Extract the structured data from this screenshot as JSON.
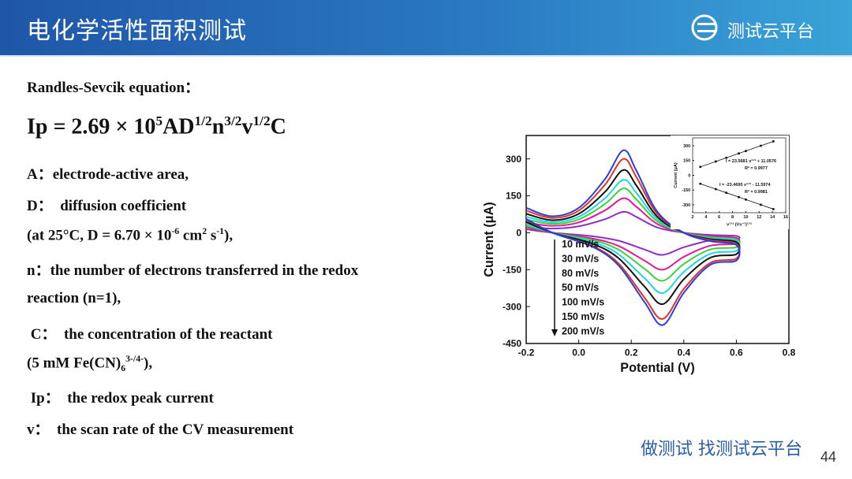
{
  "header": {
    "title": "电化学活性面积测试",
    "logo": "测试云平台"
  },
  "content": {
    "lines": [
      [
        {
          "t": "Randles-Sevcik equation："
        }
      ],
      [
        {
          "t": "Ip = 2.69 × 10"
        },
        {
          "t": "5",
          "s": "sup"
        },
        {
          "t": "AD"
        },
        {
          "t": "1/2",
          "s": "sup"
        },
        {
          "t": "n"
        },
        {
          "t": "3/2",
          "s": "sup"
        },
        {
          "t": "v"
        },
        {
          "t": "1/2",
          "s": "sup"
        },
        {
          "t": "C"
        }
      ],
      [
        {
          "t": "A：electrode-active area,"
        }
      ],
      [
        {
          "t": "D：  diffusion coefficient"
        }
      ],
      [
        {
          "t": "(at 25°C, D = 6.70 × 10"
        },
        {
          "t": "-6",
          "s": "sup"
        },
        {
          "t": " cm"
        },
        {
          "t": "2",
          "s": "sup"
        },
        {
          "t": " s"
        },
        {
          "t": "-1",
          "s": "sup"
        },
        {
          "t": "),"
        }
      ],
      [
        {
          "t": "n：the number of electrons transferred in the redox"
        }
      ],
      [
        {
          "t": "reaction (n=1),"
        }
      ],
      [
        {
          "t": " C：  the concentration of the reactant"
        }
      ],
      [
        {
          "t": "(5 mM Fe(CN)"
        },
        {
          "t": "6",
          "s": "sub"
        },
        {
          "t": "3-/4-",
          "s": "sup"
        },
        {
          "t": "),"
        }
      ],
      [
        {
          "t": " Ip：  the redox peak current"
        }
      ],
      [
        {
          "t": "v：  the scan rate of the CV measurement"
        }
      ]
    ]
  },
  "chart_data": [
    {
      "type": "line",
      "xlabel": "Potential (V)",
      "ylabel": "Current (μA)",
      "xlim": [
        -0.2,
        0.8
      ],
      "xticks": [
        -0.2,
        {
          "value": 0,
          "label": "0.0"
        },
        0.2,
        0.4,
        0.6,
        0.8
      ],
      "ylim": [
        -450,
        395
      ],
      "yticks": [
        -450,
        -300,
        -150,
        0,
        150,
        300
      ],
      "legend": "lower-left",
      "series": [
        {
          "name": "10 mV/s",
          "color": "#8b2fc9",
          "x": [
            -0.2,
            -0.1,
            0,
            0.1,
            0.17,
            0.22,
            0.3,
            0.4,
            0.5,
            0.6,
            0.6,
            0.5,
            0.4,
            0.32,
            0.25,
            0.15,
            0.05,
            -0.1,
            -0.2
          ],
          "values": [
            26,
            17,
            26,
            55,
            85,
            64,
            21,
            0,
            -9,
            -13,
            -27,
            -32,
            -59,
            -90,
            -68,
            -32,
            -14,
            0,
            14
          ]
        },
        {
          "name": "30 mV/s",
          "color": "#e0189a",
          "x": [
            -0.2,
            -0.1,
            0,
            0.1,
            0.17,
            0.22,
            0.3,
            0.4,
            0.5,
            0.6,
            0.6,
            0.5,
            0.4,
            0.32,
            0.25,
            0.15,
            0.05,
            -0.1,
            -0.2
          ],
          "values": [
            42,
            28,
            42,
            91,
            140,
            105,
            35,
            0,
            -14,
            -21,
            -45,
            -53,
            -98,
            -150,
            -113,
            -53,
            -23,
            0,
            23
          ]
        },
        {
          "name": "80 mV/s",
          "color": "#3ad43a",
          "x": [
            -0.2,
            -0.1,
            0,
            0.1,
            0.17,
            0.22,
            0.3,
            0.4,
            0.5,
            0.6,
            0.6,
            0.5,
            0.4,
            0.32,
            0.25,
            0.15,
            0.05,
            -0.1,
            -0.2
          ],
          "values": [
            54,
            36,
            54,
            117,
            180,
            135,
            45,
            0,
            -18,
            -27,
            -59,
            -68,
            -127,
            -195,
            -146,
            -68,
            -29,
            0,
            29
          ]
        },
        {
          "name": "50 mV/s",
          "color": "#22d3e0",
          "x": [
            -0.2,
            -0.1,
            0,
            0.1,
            0.17,
            0.22,
            0.3,
            0.4,
            0.5,
            0.6,
            0.6,
            0.5,
            0.4,
            0.32,
            0.25,
            0.15,
            0.05,
            -0.1,
            -0.2
          ],
          "values": [
            65,
            43,
            65,
            140,
            215,
            161,
            54,
            0,
            -22,
            -32,
            -74,
            -86,
            -159,
            -245,
            -184,
            -86,
            -37,
            0,
            37
          ]
        },
        {
          "name": "100 mV/s",
          "color": "#111111",
          "x": [
            -0.2,
            -0.1,
            0,
            0.1,
            0.17,
            0.22,
            0.3,
            0.4,
            0.5,
            0.6,
            0.6,
            0.5,
            0.4,
            0.32,
            0.25,
            0.15,
            0.05,
            -0.1,
            -0.2
          ],
          "values": [
            77,
            51,
            77,
            166,
            255,
            191,
            64,
            0,
            -26,
            -38,
            -87,
            -102,
            -189,
            -290,
            -218,
            -102,
            -44,
            0,
            44
          ]
        },
        {
          "name": "150 mV/s",
          "color": "#e0312a",
          "x": [
            -0.2,
            -0.1,
            0,
            0.1,
            0.17,
            0.22,
            0.3,
            0.4,
            0.5,
            0.6,
            0.6,
            0.5,
            0.4,
            0.32,
            0.25,
            0.15,
            0.05,
            -0.1,
            -0.2
          ],
          "values": [
            90,
            60,
            90,
            195,
            300,
            225,
            75,
            0,
            -30,
            -45,
            -105,
            -123,
            -228,
            -350,
            -263,
            -123,
            -53,
            0,
            53
          ]
        },
        {
          "name": "200 mV/s",
          "color": "#2a3fd8",
          "x": [
            -0.2,
            -0.1,
            0,
            0.1,
            0.17,
            0.22,
            0.3,
            0.4,
            0.5,
            0.6,
            0.6,
            0.5,
            0.4,
            0.32,
            0.25,
            0.15,
            0.05,
            -0.1,
            -0.2
          ],
          "values": [
            101,
            67,
            101,
            218,
            335,
            251,
            84,
            0,
            -34,
            -50,
            -113,
            -131,
            -244,
            -375,
            -281,
            -131,
            -56,
            0,
            56
          ]
        }
      ]
    },
    {
      "type": "scatter",
      "xlabel": "v¹ᐟ² (Vs⁻¹)¹ᐟ²",
      "ylabel": "Current (μA)",
      "xlim": [
        2,
        16
      ],
      "xticks": [
        2,
        4,
        6,
        8,
        10,
        12,
        14,
        16
      ],
      "ylim": [
        -380,
        380
      ],
      "yticks": [
        -300,
        -150,
        0,
        150,
        300
      ],
      "annotations": [
        "I = 23.5681 v¹ᐟ² + 11.0576",
        "R² = 0.9977",
        "I = -23.4695 v¹ᐟ² - 11.5974",
        "R² = 0.9981"
      ],
      "series": [
        {
          "color": "#111111",
          "x": [
            3.16,
            5.48,
            7.07,
            8.94,
            10,
            12.25,
            14.14
          ],
          "values": [
            85.6,
            140.2,
            177.7,
            221.8,
            246.7,
            299.7,
            344.3
          ]
        },
        {
          "color": "#111111",
          "x": [
            3.16,
            5.48,
            7.07,
            8.94,
            10,
            12.25,
            14.14
          ],
          "values": [
            -85.8,
            -140.2,
            -177.5,
            -221.4,
            -246.3,
            -299.1,
            -343.5
          ]
        }
      ]
    }
  ],
  "footer": {
    "slogan": "做测试 找测试云平台",
    "page": "44"
  }
}
